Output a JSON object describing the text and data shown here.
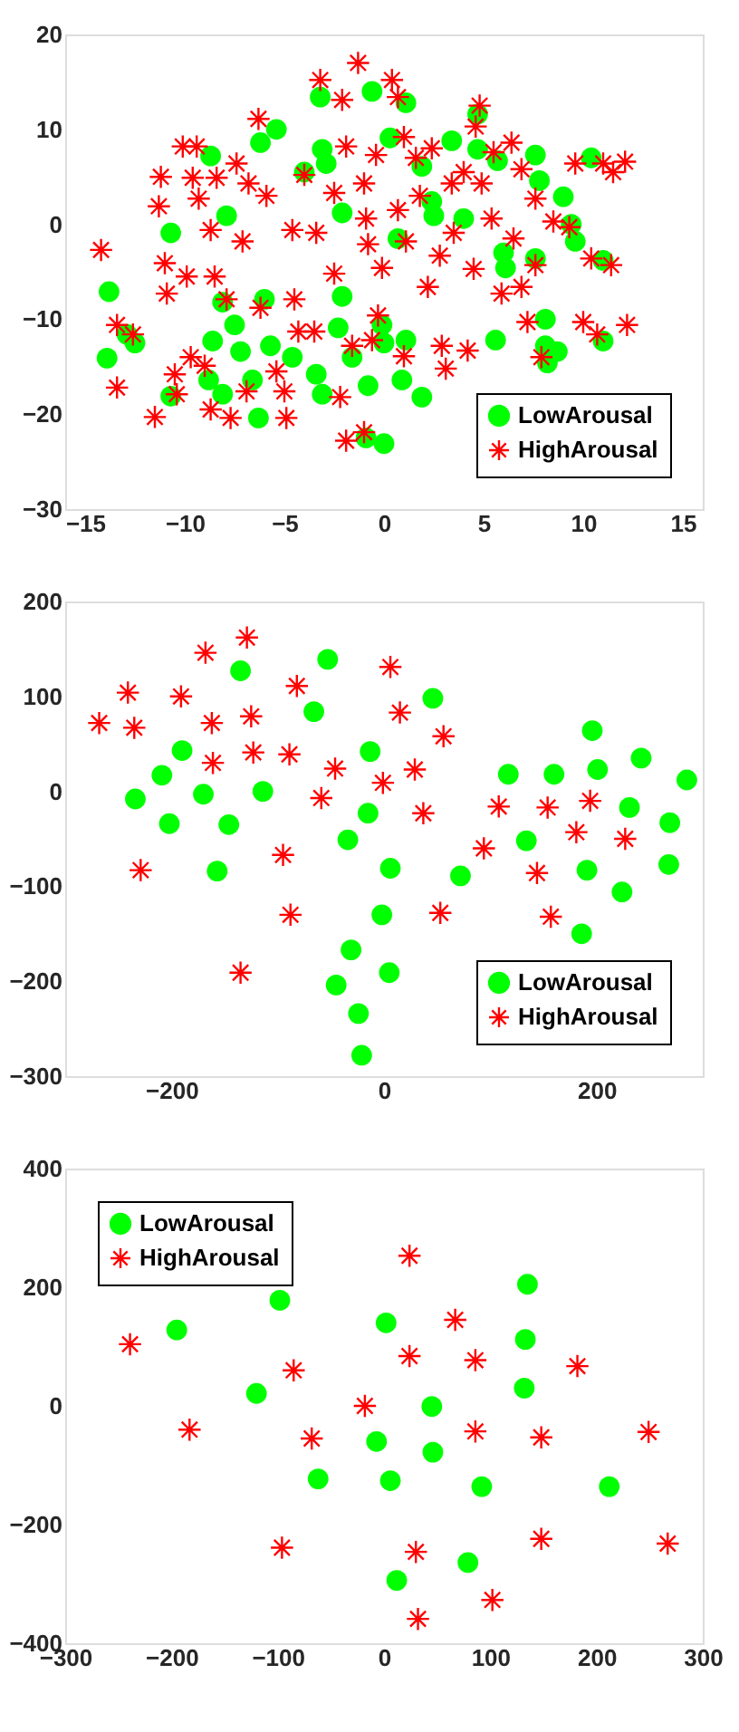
{
  "chart_data": [
    {
      "type": "scatter",
      "xlim": [
        -16,
        16
      ],
      "ylim": [
        -30,
        20
      ],
      "xticks": [
        -15,
        -10,
        -5,
        0,
        5,
        10,
        15
      ],
      "yticks": [
        -30,
        -20,
        -10,
        0,
        10,
        20
      ],
      "grid": false,
      "legend": "bottom right",
      "series": [
        {
          "name": "LowArousal",
          "color": "#00ff00",
          "marker": "circle",
          "x": [
            -13.8,
            -13.9,
            -12.5,
            -12.9,
            -10.7,
            -10.7,
            -8.7,
            -7.9,
            -8.1,
            -7.5,
            -8.6,
            -8.8,
            -8.1,
            -7.2,
            -6.6,
            -6.3,
            -6.0,
            -5.7,
            -5.4,
            -6.2,
            -4.0,
            -3.1,
            -2.9,
            -3.2,
            -4.6,
            -3.4,
            -3.1,
            -2.3,
            -2.1,
            -2.1,
            -1.6,
            -0.8,
            -0.6,
            -0.1,
            0,
            0.3,
            0.7,
            1.1,
            0.9,
            1.1,
            1.9,
            1.9,
            2.4,
            3.4,
            2.5,
            4.0,
            4.7,
            4.7,
            5.7,
            6.0,
            6.1,
            5.6,
            7.6,
            7.8,
            7.6,
            8.1,
            8.1,
            8.7,
            8.2,
            9.0,
            9.4,
            9.6,
            10.4,
            11.0,
            11.0,
            -0.9,
            0
          ],
          "values": [
            -7.1,
            -14.1,
            -12.5,
            -11.6,
            -18.1,
            -0.9,
            7.2,
            0.9,
            -8.2,
            -10.6,
            -12.3,
            -16.4,
            -17.9,
            -13.4,
            -16.4,
            -20.4,
            -7.9,
            -12.8,
            10.0,
            8.6,
            5.5,
            7.9,
            6.4,
            13.4,
            -14.0,
            -15.8,
            -17.9,
            -10.9,
            -7.6,
            1.2,
            -14.0,
            -17.0,
            14.0,
            -10.6,
            -12.5,
            9.1,
            -1.5,
            12.8,
            -16.4,
            -12.2,
            6.1,
            -18.2,
            2.4,
            8.8,
            0.9,
            0.6,
            7.9,
            11.6,
            6.7,
            -3.0,
            -4.6,
            -12.2,
            7.3,
            4.6,
            -3.6,
            -10.0,
            -12.8,
            -13.4,
            -14.6,
            2.9,
            0.0,
            -1.8,
            7.0,
            -3.8,
            -12.3,
            -22.5,
            -23.1
          ]
        },
        {
          "name": "HighArousal",
          "color": "#ff0000",
          "marker": "cross",
          "x": [
            -14.2,
            -13.4,
            -13.4,
            -12.6,
            -11.5,
            -11.2,
            -11.3,
            -11.0,
            -10.9,
            -10.5,
            -10.4,
            -10.1,
            -9.9,
            -9.4,
            -9.7,
            -9.6,
            -9.3,
            -9.0,
            -8.7,
            -8.5,
            -8.4,
            -8.7,
            -7.9,
            -7.7,
            -7.4,
            -7.1,
            -6.9,
            -6.8,
            -6.3,
            -6.2,
            -5.9,
            -5.4,
            -5.0,
            -4.9,
            -4.5,
            -4.6,
            -4.3,
            -4.0,
            -3.4,
            -3.2,
            -3.5,
            -2.5,
            -2.5,
            -2.1,
            -1.9,
            -1.6,
            -2.2,
            -1.9,
            -1.3,
            -1.0,
            -0.9,
            -0.8,
            -0.6,
            -0.4,
            -0.1,
            0.4,
            0.7,
            1.0,
            0.7,
            1.0,
            1.1,
            1.6,
            1.8,
            2.2,
            2.8,
            2.9,
            2.4,
            3.1,
            3.4,
            3.5,
            4.0,
            4.2,
            4.5,
            4.8,
            4.6,
            4.9,
            5.4,
            5.5,
            5.9,
            6.4,
            6.5,
            6.9,
            6.9,
            7.2,
            7.6,
            7.6,
            7.9,
            8.5,
            9.3,
            9.6,
            10.4,
            10.0,
            10.7,
            11.0,
            11.5,
            11.4,
            12.1,
            12.2,
            -0.3,
            -1.0
          ],
          "values": [
            -2.7,
            -17.2,
            -10.6,
            -11.6,
            -20.3,
            5.0,
            1.9,
            -4.1,
            -7.3,
            -15.8,
            -17.9,
            8.2,
            -5.5,
            8.2,
            -14.0,
            4.9,
            2.7,
            -14.9,
            -0.6,
            -5.5,
            4.9,
            -19.5,
            -7.9,
            -20.4,
            6.4,
            -1.8,
            -17.6,
            4.3,
            11.1,
            -8.8,
            3.0,
            -15.5,
            -17.6,
            -20.4,
            -7.9,
            -0.6,
            -11.3,
            5.2,
            -0.9,
            15.2,
            -11.3,
            -5.2,
            3.3,
            13.1,
            8.2,
            -12.8,
            -18.2,
            -22.8,
            17.0,
            4.3,
            0.6,
            -2.1,
            -12.2,
            7.3,
            -4.6,
            15.2,
            13.4,
            9.2,
            1.5,
            -13.9,
            -1.8,
            7.0,
            3.0,
            -6.6,
            -3.3,
            -12.8,
            8.0,
            -15.2,
            4.3,
            -0.9,
            5.5,
            -13.3,
            -4.7,
            12.5,
            10.3,
            4.3,
            0.6,
            7.6,
            -7.3,
            8.6,
            -1.5,
            5.8,
            -6.6,
            -10.3,
            -4.3,
            2.7,
            -14.0,
            0.3,
            -0.3,
            6.4,
            -3.6,
            -10.3,
            -11.6,
            6.4,
            5.5,
            -4.3,
            6.6,
            -10.6,
            -9.6,
            -21.9
          ]
        }
      ]
    },
    {
      "type": "scatter",
      "xlim": [
        -300,
        300
      ],
      "ylim": [
        -300,
        200
      ],
      "xticks": [
        -200,
        0,
        200
      ],
      "yticks": [
        -300,
        -200,
        -100,
        0,
        100,
        200
      ],
      "grid": false,
      "legend": "bottom right",
      "series": [
        {
          "name": "LowArousal",
          "color": "#00ff00",
          "marker": "circle",
          "x": [
            -234,
            -209,
            -190,
            -202,
            -170,
            -146,
            -157,
            -135,
            -114,
            -66,
            -53,
            -13,
            -15,
            -34,
            6,
            -2,
            -31,
            -45,
            -24,
            -21,
            5,
            46,
            72,
            117,
            134,
            160,
            196,
            201,
            191,
            186,
            231,
            242,
            224,
            269,
            268,
            285
          ],
          "values": [
            -8,
            17,
            43,
            -34,
            -3,
            -35,
            -84,
            127,
            0,
            84,
            139,
            42,
            -23,
            -51,
            -81,
            -130,
            -167,
            -204,
            -234,
            -278,
            -191,
            98,
            -89,
            18,
            -52,
            18,
            64,
            23,
            -83,
            -150,
            -17,
            35,
            -106,
            -33,
            -77,
            12
          ]
        },
        {
          "name": "HighArousal",
          "color": "#ff0000",
          "marker": "cross",
          "x": [
            -268,
            -241,
            -235,
            -229,
            -191,
            -168,
            -162,
            -161,
            -129,
            -125,
            -123,
            -135,
            -89,
            -82,
            -95,
            -88,
            -59,
            -46,
            -1,
            6,
            15,
            29,
            37,
            56,
            53,
            94,
            108,
            154,
            144,
            181,
            194,
            157,
            227
          ],
          "values": [
            72,
            104,
            67,
            -83,
            100,
            146,
            72,
            30,
            162,
            79,
            41,
            -191,
            39,
            111,
            -67,
            -130,
            -7,
            24,
            9,
            131,
            83,
            23,
            -23,
            58,
            -128,
            -60,
            -16,
            -17,
            -86,
            -43,
            -10,
            -132,
            -50
          ]
        }
      ]
    },
    {
      "type": "scatter",
      "xlim": [
        -300,
        300
      ],
      "ylim": [
        -400,
        400
      ],
      "xticks": [
        -300,
        -200,
        -100,
        0,
        100,
        200,
        300
      ],
      "yticks": [
        -400,
        -200,
        0,
        200,
        400
      ],
      "grid": false,
      "legend": "top left",
      "series": [
        {
          "name": "LowArousal",
          "color": "#00ff00",
          "marker": "circle",
          "x": [
            -195,
            -98,
            -120,
            -62,
            2,
            -7,
            6,
            45,
            46,
            12,
            79,
            92,
            135,
            133,
            132,
            212
          ],
          "values": [
            128,
            178,
            21,
            -123,
            140,
            -60,
            -126,
            -1,
            -78,
            -294,
            -264,
            -136,
            205,
            112,
            30,
            -136
          ]
        },
        {
          "name": "HighArousal",
          "color": "#ff0000",
          "marker": "cross",
          "x": [
            -239,
            -183,
            -85,
            -68,
            -96,
            -18,
            24,
            24,
            67,
            86,
            86,
            30,
            32,
            102,
            148,
            148,
            182,
            249,
            267
          ],
          "values": [
            104,
            -40,
            60,
            -55,
            -239,
            0,
            253,
            84,
            145,
            77,
            -43,
            -246,
            -359,
            -327,
            -53,
            -224,
            67,
            -44,
            -232
          ]
        }
      ]
    }
  ]
}
